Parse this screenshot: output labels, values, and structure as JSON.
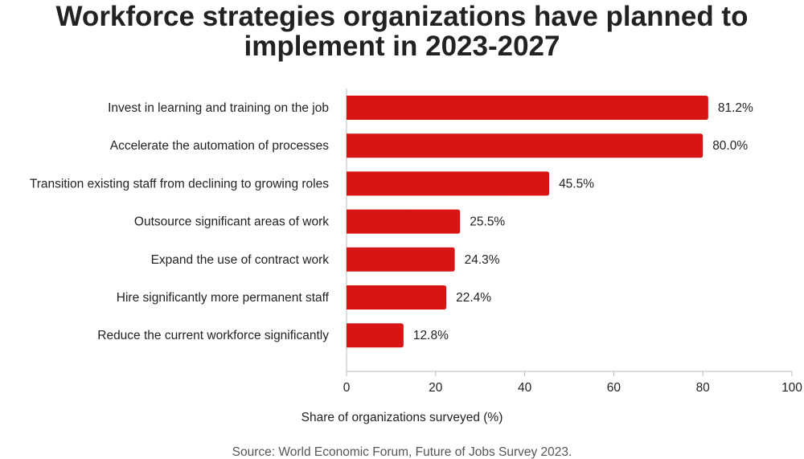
{
  "chart_data": {
    "type": "bar",
    "orientation": "horizontal",
    "title_lines": [
      "Workforce strategies organizations have planned to",
      "implement in 2023-2027"
    ],
    "categories": [
      "Invest in learning and training on the job",
      "Accelerate the automation of processes",
      "Transition existing staff from declining to growing roles",
      "Outsource significant areas of work",
      "Expand the use of contract work",
      "Hire significantly more permanent staff",
      "Reduce the current workforce significantly"
    ],
    "values": [
      81.2,
      80.0,
      45.5,
      25.5,
      24.3,
      22.4,
      12.8
    ],
    "value_labels": [
      "81.2%",
      "80.0%",
      "45.5%",
      "25.5%",
      "24.3%",
      "22.4%",
      "12.8%"
    ],
    "xlabel": "Share of organizations surveyed (%)",
    "ylabel": "",
    "xlim": [
      0,
      100
    ],
    "xticks": [
      0,
      20,
      40,
      60,
      80,
      100
    ],
    "grid": false,
    "bar_color": "#d91414",
    "source": "Source: World Economic Forum, Future of Jobs Survey 2023."
  }
}
